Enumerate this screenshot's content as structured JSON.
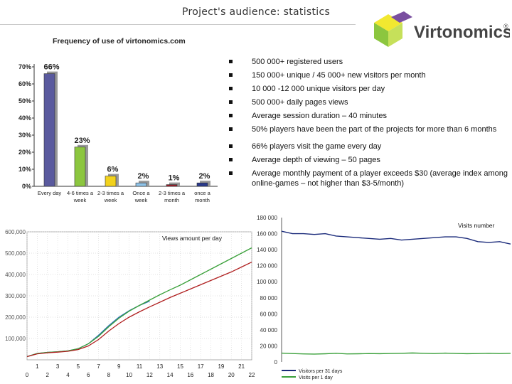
{
  "slide_title": "Project's audience: statistics",
  "logo_text": "Virtonomics",
  "logo_mark": "®",
  "logo_colors": {
    "yellow": "#f2e830",
    "green": "#8cc63f",
    "purple": "#7a4fa0",
    "lime": "#c6e05a"
  },
  "bullets": [
    "500 000+ registered users",
    "150 000+ unique / 45 000+ new visitors per month",
    "10 000 -12 000 unique visitors per day",
    "500 000+ daily pages views",
    "Average session duration – 40 minutes",
    "50% players have been the part of the projects for more than 6 months",
    "66% players visit the game every day",
    "Average depth of viewing – 50 pages",
    "Average monthly payment of a player exceeds $30 (average index among online-games – not higher than $3-5/month)"
  ],
  "chart_data": [
    {
      "type": "bar",
      "title": "Frequency of use of virtonomics.com",
      "categories": [
        "Every day",
        "4-6 times a week",
        "2-3 times a week",
        "Once a week",
        "2-3 times a month",
        "once a month"
      ],
      "values": [
        66,
        23,
        6,
        2,
        1,
        2
      ],
      "value_labels": [
        "66%",
        "23%",
        "6%",
        "2%",
        "1%",
        "2%"
      ],
      "colors": [
        "#5a5a9e",
        "#8cc63f",
        "#f2d21c",
        "#8fc3e8",
        "#9a1c28",
        "#2a3a8c"
      ],
      "ylim": [
        0,
        70
      ],
      "yticks": [
        "0%",
        "10%",
        "20%",
        "30%",
        "40%",
        "50%",
        "60%",
        "70%"
      ],
      "ytick_values": [
        0,
        10,
        20,
        30,
        40,
        50,
        60,
        70
      ],
      "xlabel": "",
      "ylabel": "",
      "grid": false
    },
    {
      "type": "line",
      "title": "Views amount per day",
      "xlim": [
        0,
        22
      ],
      "ylim": [
        0,
        600000
      ],
      "yticks": [
        "100,000",
        "200,000",
        "300,000",
        "400,000",
        "500,000",
        "600,000"
      ],
      "ytick_values": [
        100000,
        200000,
        300000,
        400000,
        500000,
        600000
      ],
      "xticks_top": [
        "1",
        "3",
        "5",
        "7",
        "9",
        "11",
        "13",
        "15",
        "17",
        "19",
        "21"
      ],
      "xtick_top_values": [
        1,
        3,
        5,
        7,
        9,
        11,
        13,
        15,
        17,
        19,
        21
      ],
      "xticks_bottom": [
        "0",
        "2",
        "4",
        "6",
        "8",
        "10",
        "12",
        "14",
        "16",
        "18",
        "20",
        "22"
      ],
      "xtick_bottom_values": [
        0,
        2,
        4,
        6,
        8,
        10,
        12,
        14,
        16,
        18,
        20,
        22
      ],
      "grid": true,
      "series": [
        {
          "color": "#2a6fb3",
          "x": [
            0,
            1,
            2,
            3,
            4,
            5,
            6,
            7,
            8,
            9,
            10,
            11,
            12
          ],
          "values": [
            15000,
            30000,
            35000,
            38000,
            42000,
            52000,
            75000,
            115000,
            160000,
            200000,
            230000,
            255000,
            275000
          ]
        },
        {
          "color": "#3aa03a",
          "x": [
            0,
            1,
            2,
            3,
            4,
            5,
            6,
            7,
            8,
            9,
            10,
            11,
            12,
            13,
            14,
            15,
            16,
            17,
            18,
            19,
            20,
            21,
            22
          ],
          "values": [
            15000,
            30000,
            35000,
            38000,
            42000,
            52000,
            75000,
            110000,
            155000,
            195000,
            228000,
            255000,
            280000,
            305000,
            328000,
            350000,
            375000,
            400000,
            425000,
            450000,
            475000,
            500000,
            525000
          ]
        },
        {
          "color": "#b02020",
          "x": [
            0,
            1,
            2,
            3,
            4,
            5,
            6,
            7,
            8,
            9,
            10,
            11,
            12,
            13,
            14,
            15,
            16,
            17,
            18,
            19,
            20,
            21,
            22
          ],
          "values": [
            15000,
            28000,
            33000,
            36000,
            40000,
            48000,
            65000,
            95000,
            135000,
            170000,
            200000,
            225000,
            248000,
            270000,
            292000,
            312000,
            332000,
            352000,
            372000,
            392000,
            412000,
            435000,
            458000
          ]
        }
      ]
    },
    {
      "type": "line",
      "title": "Visits number",
      "ylim": [
        0,
        180000
      ],
      "yticks": [
        "0",
        "20 000",
        "40 000",
        "60 000",
        "80 000",
        "100 000",
        "120 000",
        "140 000",
        "160 000",
        "180 000"
      ],
      "ytick_values": [
        0,
        20000,
        40000,
        60000,
        80000,
        100000,
        120000,
        140000,
        160000,
        180000
      ],
      "grid": false,
      "series": [
        {
          "name": "Visitors per 31 days",
          "color": "#1a2a7a",
          "values": [
            163000,
            160000,
            160000,
            159000,
            160000,
            157000,
            156000,
            155000,
            154000,
            153000,
            154000,
            152000,
            153000,
            154000,
            155000,
            156000,
            156000,
            154000,
            150000,
            149000,
            150000,
            147000
          ]
        },
        {
          "name": "Visits per 1 day",
          "color": "#3aa03a",
          "values": [
            11000,
            10500,
            10000,
            9800,
            10200,
            10800,
            10000,
            10200,
            10500,
            10300,
            10600,
            10800,
            11200,
            10800,
            10500,
            11000,
            10600,
            10300,
            10500,
            10800,
            10500,
            10800
          ]
        }
      ]
    }
  ]
}
